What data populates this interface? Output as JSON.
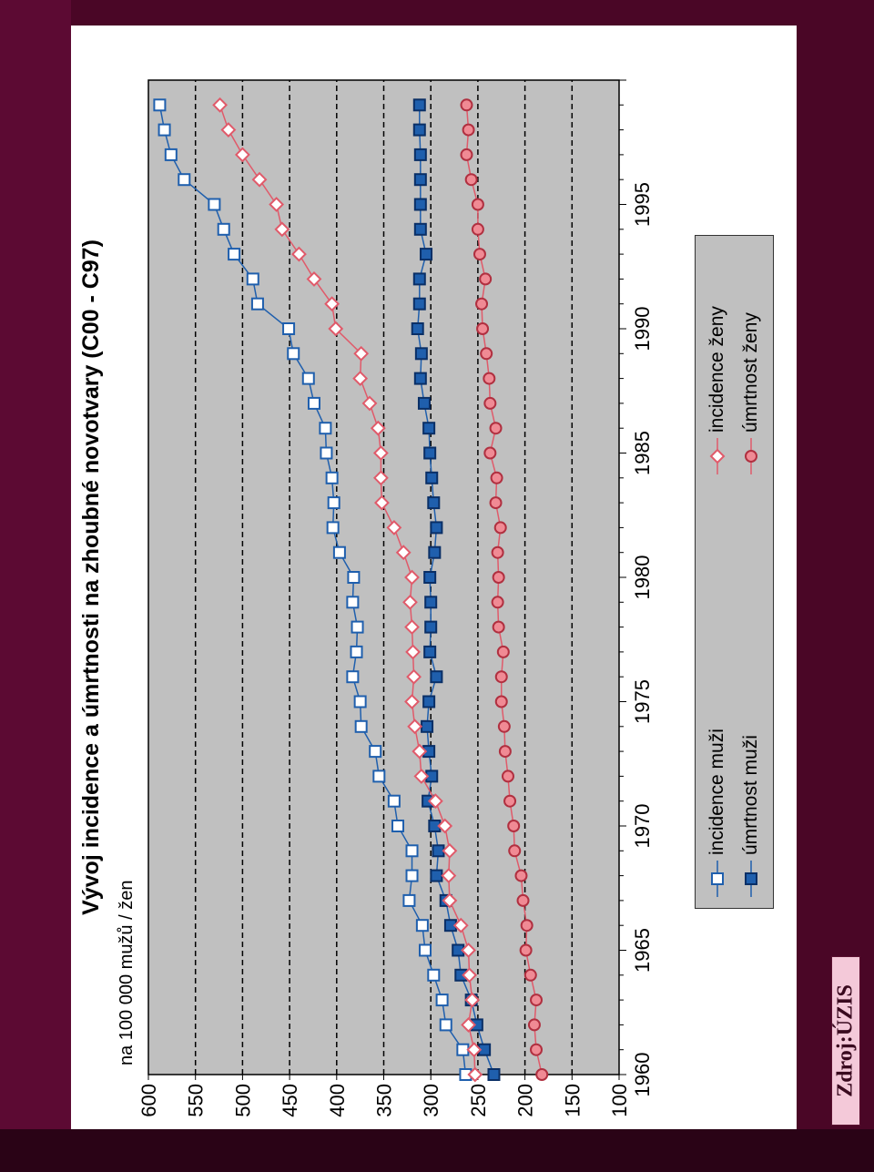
{
  "chart_data": {
    "type": "line",
    "title": "Vývoj incidence a úmrtnosti na zhoubné novotvary (C00 - C97)",
    "subtitle": "na 100 000 mužů / žen",
    "xlabel": "",
    "ylabel": "",
    "x_ticks": [
      1960,
      1965,
      1970,
      1975,
      1980,
      1985,
      1990,
      1995
    ],
    "y_ticks": [
      100,
      150,
      200,
      250,
      300,
      350,
      400,
      450,
      500,
      550,
      600
    ],
    "xlim": [
      1960,
      2000
    ],
    "ylim": [
      100,
      600
    ],
    "grid": "horizontal dashed",
    "legend_placement": "bottom",
    "x": [
      1960,
      1961,
      1962,
      1963,
      1964,
      1965,
      1966,
      1967,
      1968,
      1969,
      1970,
      1971,
      1972,
      1973,
      1974,
      1975,
      1976,
      1977,
      1978,
      1979,
      1980,
      1981,
      1982,
      1983,
      1984,
      1985,
      1986,
      1987,
      1988,
      1989,
      1990,
      1991,
      1992,
      1993,
      1994,
      1995,
      1996,
      1997,
      1998,
      1999
    ],
    "series": [
      {
        "name": "incidence muži",
        "color": "#1f5fad",
        "marker": "square-open",
        "values": [
          263,
          266,
          284,
          288,
          297,
          306,
          309,
          323,
          320,
          320,
          335,
          339,
          355,
          359,
          374,
          375,
          383,
          379,
          378,
          383,
          382,
          397,
          404,
          403,
          405,
          411,
          412,
          424,
          430,
          446,
          451,
          484,
          489,
          509,
          520,
          530,
          562,
          576,
          583,
          588
        ]
      },
      {
        "name": "úmrtnost muži",
        "color": "#1f5fad",
        "marker": "square-filled",
        "values": [
          233,
          243,
          251,
          257,
          268,
          271,
          279,
          284,
          294,
          292,
          296,
          303,
          299,
          302,
          304,
          302,
          294,
          301,
          300,
          300,
          301,
          296,
          294,
          297,
          299,
          301,
          302,
          307,
          311,
          310,
          314,
          312,
          312,
          305,
          311,
          311,
          311,
          311,
          312,
          312
        ]
      },
      {
        "name": "incidence ženy",
        "color": "#e05a6a",
        "marker": "diamond-open",
        "values": [
          253,
          254,
          260,
          256,
          259,
          260,
          268,
          280,
          281,
          280,
          285,
          295,
          310,
          312,
          317,
          320,
          318,
          319,
          320,
          322,
          320,
          329,
          339,
          352,
          353,
          353,
          356,
          365,
          375,
          374,
          401,
          405,
          424,
          440,
          458,
          464,
          482,
          500,
          515,
          524
        ]
      },
      {
        "name": "úmrtnost ženy",
        "color": "#e05a6a",
        "marker": "circle-filled",
        "values": [
          182,
          188,
          190,
          188,
          194,
          199,
          198,
          202,
          204,
          211,
          212,
          216,
          218,
          221,
          222,
          225,
          225,
          223,
          228,
          229,
          228,
          229,
          226,
          231,
          230,
          237,
          231,
          237,
          238,
          241,
          245,
          246,
          242,
          248,
          250,
          250,
          257,
          262,
          260,
          262
        ]
      }
    ]
  },
  "source_label": "Zdroj:ÚZIS",
  "colors": {
    "background": "#4a0626",
    "plot_background": "#c0c0c0",
    "legend_background": "#c0c0c0"
  }
}
